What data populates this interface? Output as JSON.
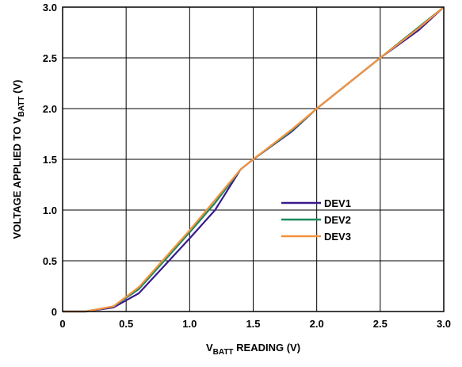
{
  "chart_data": {
    "type": "line",
    "xlabel_main": "V",
    "xlabel_sub": "BATT",
    "xlabel_rest": " READING (V)",
    "ylabel_main": "VOLTAGE APPLIED TO V",
    "ylabel_sub": "BATT",
    "ylabel_rest": " (V)",
    "xlim": [
      0,
      3.0
    ],
    "ylim": [
      0,
      3.0
    ],
    "xticks": [
      0,
      0.5,
      1.0,
      1.5,
      2.0,
      2.5,
      3.0
    ],
    "xtick_labels": [
      "0",
      "0.5",
      "1.0",
      "1.5",
      "2.0",
      "2.5",
      "3.0"
    ],
    "yticks": [
      0,
      0.5,
      1.0,
      1.5,
      2.0,
      2.5,
      3.0
    ],
    "ytick_labels": [
      "0",
      "0.5",
      "1.0",
      "1.5",
      "2.0",
      "2.5",
      "3.0"
    ],
    "grid": true,
    "legend_position": "center-right",
    "series": [
      {
        "name": "DEV1",
        "color": "#3a1a8c",
        "x": [
          0,
          0.18,
          0.4,
          0.6,
          0.8,
          1.0,
          1.2,
          1.4,
          1.5,
          1.8,
          2.0,
          2.5,
          2.8,
          3.0
        ],
        "y": [
          0,
          0,
          0.04,
          0.18,
          0.45,
          0.72,
          1.0,
          1.4,
          1.5,
          1.77,
          2.0,
          2.5,
          2.77,
          3.0
        ]
      },
      {
        "name": "DEV2",
        "color": "#1a8a5a",
        "x": [
          0,
          0.18,
          0.4,
          0.6,
          0.8,
          1.0,
          1.2,
          1.4,
          1.5,
          1.8,
          2.0,
          2.5,
          2.8,
          3.0
        ],
        "y": [
          0,
          0,
          0.05,
          0.22,
          0.5,
          0.78,
          1.07,
          1.4,
          1.5,
          1.78,
          2.0,
          2.5,
          2.8,
          3.0
        ]
      },
      {
        "name": "DEV3",
        "color": "#f5923e",
        "x": [
          0,
          0.18,
          0.4,
          0.6,
          0.8,
          1.0,
          1.2,
          1.4,
          1.5,
          1.8,
          2.0,
          2.5,
          2.8,
          3.0
        ],
        "y": [
          0,
          0,
          0.05,
          0.24,
          0.52,
          0.8,
          1.1,
          1.4,
          1.5,
          1.79,
          2.0,
          2.5,
          2.79,
          3.0
        ]
      }
    ]
  }
}
